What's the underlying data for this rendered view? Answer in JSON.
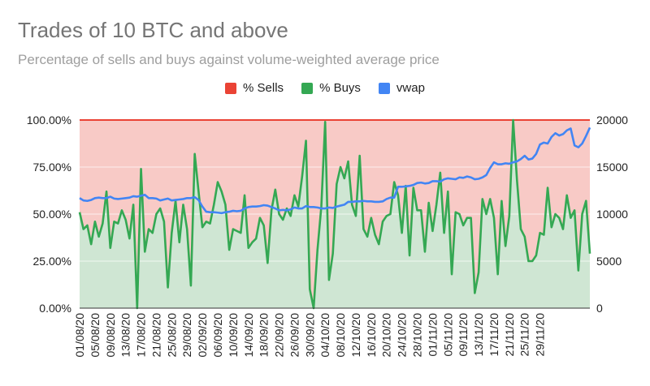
{
  "chart_data": {
    "type": "area",
    "title": "Trades of 10 BTC and above",
    "subtitle": "Percentage of sells and buys against volume-weighted average price",
    "legend_position": "top",
    "legend": [
      {
        "name": "% Sells",
        "color": "#ea4335"
      },
      {
        "name": "% Buys",
        "color": "#34a853"
      },
      {
        "name": "vwap",
        "color": "#4285f4"
      }
    ],
    "colors": {
      "sells_fill": "#f8cac6",
      "buys_fill": "#cfe6d3",
      "sells_line": "#ea4335",
      "buys_line": "#34a853",
      "vwap_line": "#4285f4",
      "axis_text": "#222222"
    },
    "left_axis": {
      "ylim": [
        0,
        100
      ],
      "ticks": [
        0,
        25,
        50,
        75,
        100
      ],
      "tick_labels": [
        "0.00%",
        "25.00%",
        "50.00%",
        "75.00%",
        "100.00%"
      ]
    },
    "right_axis": {
      "ylim": [
        0,
        20000
      ],
      "ticks": [
        0,
        5000,
        10000,
        15000,
        20000
      ],
      "tick_labels": [
        "0",
        "5000",
        "10000",
        "15000",
        "20000"
      ]
    },
    "grid": true,
    "x_tick_labels": [
      "01/08/20",
      "05/08/20",
      "09/08/20",
      "13/08/20",
      "17/08/20",
      "21/08/20",
      "25/08/20",
      "29/08/20",
      "02/09/20",
      "06/09/20",
      "10/09/20",
      "14/09/20",
      "18/09/20",
      "22/09/20",
      "26/09/20",
      "30/09/20",
      "04/10/20",
      "08/10/20",
      "12/10/20",
      "16/10/20",
      "20/10/20",
      "24/10/20",
      "28/10/20",
      "01/11/20",
      "05/11/20",
      "09/11/20",
      "13/11/20",
      "17/11/20",
      "21/11/20",
      "25/11/20",
      "29/11/20"
    ],
    "x_tick_every_days": 4,
    "series": [
      {
        "name": "% Buys",
        "axis": "left",
        "values": [
          51,
          42,
          44,
          34,
          46,
          38,
          45,
          62,
          32,
          46,
          45,
          52,
          47,
          37,
          55,
          0,
          74,
          30,
          42,
          40,
          50,
          53,
          46,
          11,
          40,
          57,
          35,
          55,
          42,
          12,
          82,
          62,
          43,
          46,
          45,
          55,
          67,
          62,
          55,
          31,
          42,
          41,
          40,
          60,
          32,
          35,
          37,
          48,
          44,
          24,
          52,
          63,
          50,
          47,
          53,
          49,
          60,
          54,
          70,
          89,
          10,
          0,
          31,
          54,
          99,
          15,
          29,
          66,
          75,
          69,
          78,
          55,
          49,
          81,
          42,
          38,
          48,
          39,
          34,
          46,
          49,
          50,
          67,
          60,
          40,
          65,
          28,
          64,
          52,
          52,
          30,
          56,
          41,
          55,
          72,
          40,
          62,
          18,
          51,
          50,
          44,
          48,
          48,
          8,
          19,
          58,
          50,
          58,
          48,
          18,
          57,
          33,
          49,
          100,
          68,
          42,
          38,
          25,
          25,
          28,
          40,
          39,
          64,
          43,
          50,
          48,
          42,
          60,
          48,
          52,
          20,
          50,
          57,
          29
        ],
        "color": "#34a853"
      },
      {
        "name": "% Sells",
        "axis": "left",
        "values": [
          49,
          58,
          56,
          66,
          54,
          62,
          55,
          38,
          68,
          54,
          55,
          48,
          53,
          63,
          45,
          100,
          26,
          70,
          58,
          60,
          50,
          47,
          54,
          89,
          60,
          43,
          65,
          45,
          58,
          88,
          18,
          38,
          57,
          54,
          55,
          45,
          33,
          38,
          45,
          69,
          58,
          59,
          60,
          40,
          68,
          65,
          63,
          52,
          56,
          76,
          48,
          37,
          50,
          53,
          47,
          51,
          40,
          46,
          30,
          11,
          90,
          100,
          69,
          46,
          1,
          85,
          71,
          34,
          25,
          31,
          22,
          45,
          51,
          19,
          58,
          62,
          52,
          61,
          66,
          54,
          51,
          50,
          33,
          40,
          60,
          35,
          72,
          36,
          48,
          48,
          70,
          44,
          59,
          45,
          28,
          60,
          38,
          82,
          49,
          50,
          56,
          52,
          52,
          92,
          81,
          42,
          50,
          42,
          52,
          82,
          43,
          67,
          51,
          0,
          32,
          58,
          62,
          75,
          75,
          72,
          60,
          61,
          36,
          57,
          50,
          52,
          58,
          40,
          52,
          48,
          80,
          50,
          43,
          71
        ],
        "color": "#ea4335"
      },
      {
        "name": "vwap",
        "axis": "right",
        "values": [
          11700,
          11450,
          11400,
          11500,
          11700,
          11750,
          11700,
          11700,
          11850,
          11650,
          11600,
          11650,
          11700,
          11750,
          11900,
          11850,
          11950,
          12050,
          11700,
          11700,
          11650,
          11450,
          11550,
          11650,
          11450,
          11500,
          11550,
          11600,
          11700,
          11700,
          11800,
          11500,
          10800,
          10250,
          10200,
          10200,
          10150,
          10100,
          10200,
          10250,
          10350,
          10300,
          10350,
          10600,
          10750,
          10800,
          10800,
          10850,
          10950,
          10900,
          10750,
          10600,
          10400,
          10450,
          10400,
          10500,
          10700,
          10600,
          10600,
          10850,
          10750,
          10750,
          10700,
          10600,
          10600,
          10700,
          10650,
          10800,
          10900,
          11000,
          11300,
          11300,
          11350,
          11350,
          11400,
          11350,
          11350,
          11300,
          11300,
          11350,
          11600,
          11750,
          11750,
          12900,
          12900,
          12950,
          13000,
          13100,
          13300,
          13350,
          13250,
          13300,
          13500,
          13500,
          13450,
          13700,
          13800,
          13750,
          13700,
          13900,
          13850,
          14000,
          13900,
          13700,
          13750,
          13900,
          14150,
          14900,
          15500,
          15300,
          15300,
          15400,
          15350,
          15500,
          15600,
          15850,
          16200,
          15800,
          15900,
          16400,
          17400,
          17600,
          17500,
          18200,
          18600,
          18350,
          18500,
          18900,
          19100,
          17300,
          17100,
          17500,
          18300,
          19200
        ],
        "color": "#4285f4"
      }
    ]
  }
}
